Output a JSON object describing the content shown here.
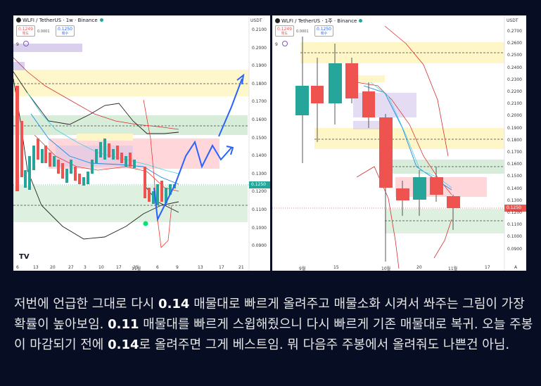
{
  "left_chart": {
    "symbol": "WLFI / TetherUS · 1w · Binance",
    "sell_price": "0.1249",
    "sell_label": "매도",
    "buy_price": "0.1250",
    "buy_label": "매수",
    "spread": "0.0001",
    "indicator_value": "9",
    "currency": "USDT",
    "current_price": "0.1250",
    "price_axis": [
      "0.2100",
      "0.2000",
      "0.1900",
      "0.1800",
      "0.1700",
      "0.1600",
      "0.1500",
      "0.1400",
      "0.1300",
      "0.1200",
      "0.1100",
      "0.1000",
      "0.0900"
    ],
    "time_axis": [
      "6",
      "13",
      "20",
      "27",
      "3",
      "10",
      "17",
      "25",
      "11월",
      "6",
      "9",
      "13",
      "17",
      "21"
    ],
    "logo_text": "TV"
  },
  "right_chart": {
    "symbol": "WLFI / TetherUS · 1주 · Binance",
    "sell_price": "0.1249",
    "sell_label": "매도",
    "buy_price": "0.1250",
    "buy_label": "매수",
    "spread": "0.0001",
    "indicator_value": "9",
    "currency": "USDT",
    "current_price": "0.1250",
    "price_axis": [
      "0.2700",
      "0.2600",
      "0.2500",
      "0.2400",
      "0.2300",
      "0.2200",
      "0.2100",
      "0.2000",
      "0.1900",
      "0.1800",
      "0.1700",
      "0.1600",
      "0.1500",
      "0.1400",
      "0.1300",
      "0.1200",
      "0.1100",
      "0.1000",
      "0.0900"
    ],
    "time_axis": [
      "9월",
      "15",
      "10월",
      "20",
      "11월",
      "17",
      "A"
    ]
  },
  "caption": {
    "p1": "저번에 언급한 그대로 다시 ",
    "b1": "0.14",
    "p2": " 매물대로 빠르게 올려주고 매물소화 시켜서 쏴주는 그림이 가장 확률이 높아보임. ",
    "b2": "0.11",
    "p3": " 매물대를 빠르게 스윕해줬으니 다시 빠르게 기존 매물대로 복귀. 오늘 주봉이 마감되기 전에 ",
    "b3": "0.14",
    "p4": "로 올려주면 그게 베스트임. 뭐 다음주 주봉에서 올려줘도 나쁜건 아님."
  },
  "colors": {
    "up": "#26a69a",
    "down": "#ef5350",
    "projection": "#2962ff",
    "zone_green": "#c8e6c9",
    "zone_red": "#ffcdd2",
    "zone_yellow": "#fff6c7",
    "zone_purple": "#d1c4e9"
  }
}
